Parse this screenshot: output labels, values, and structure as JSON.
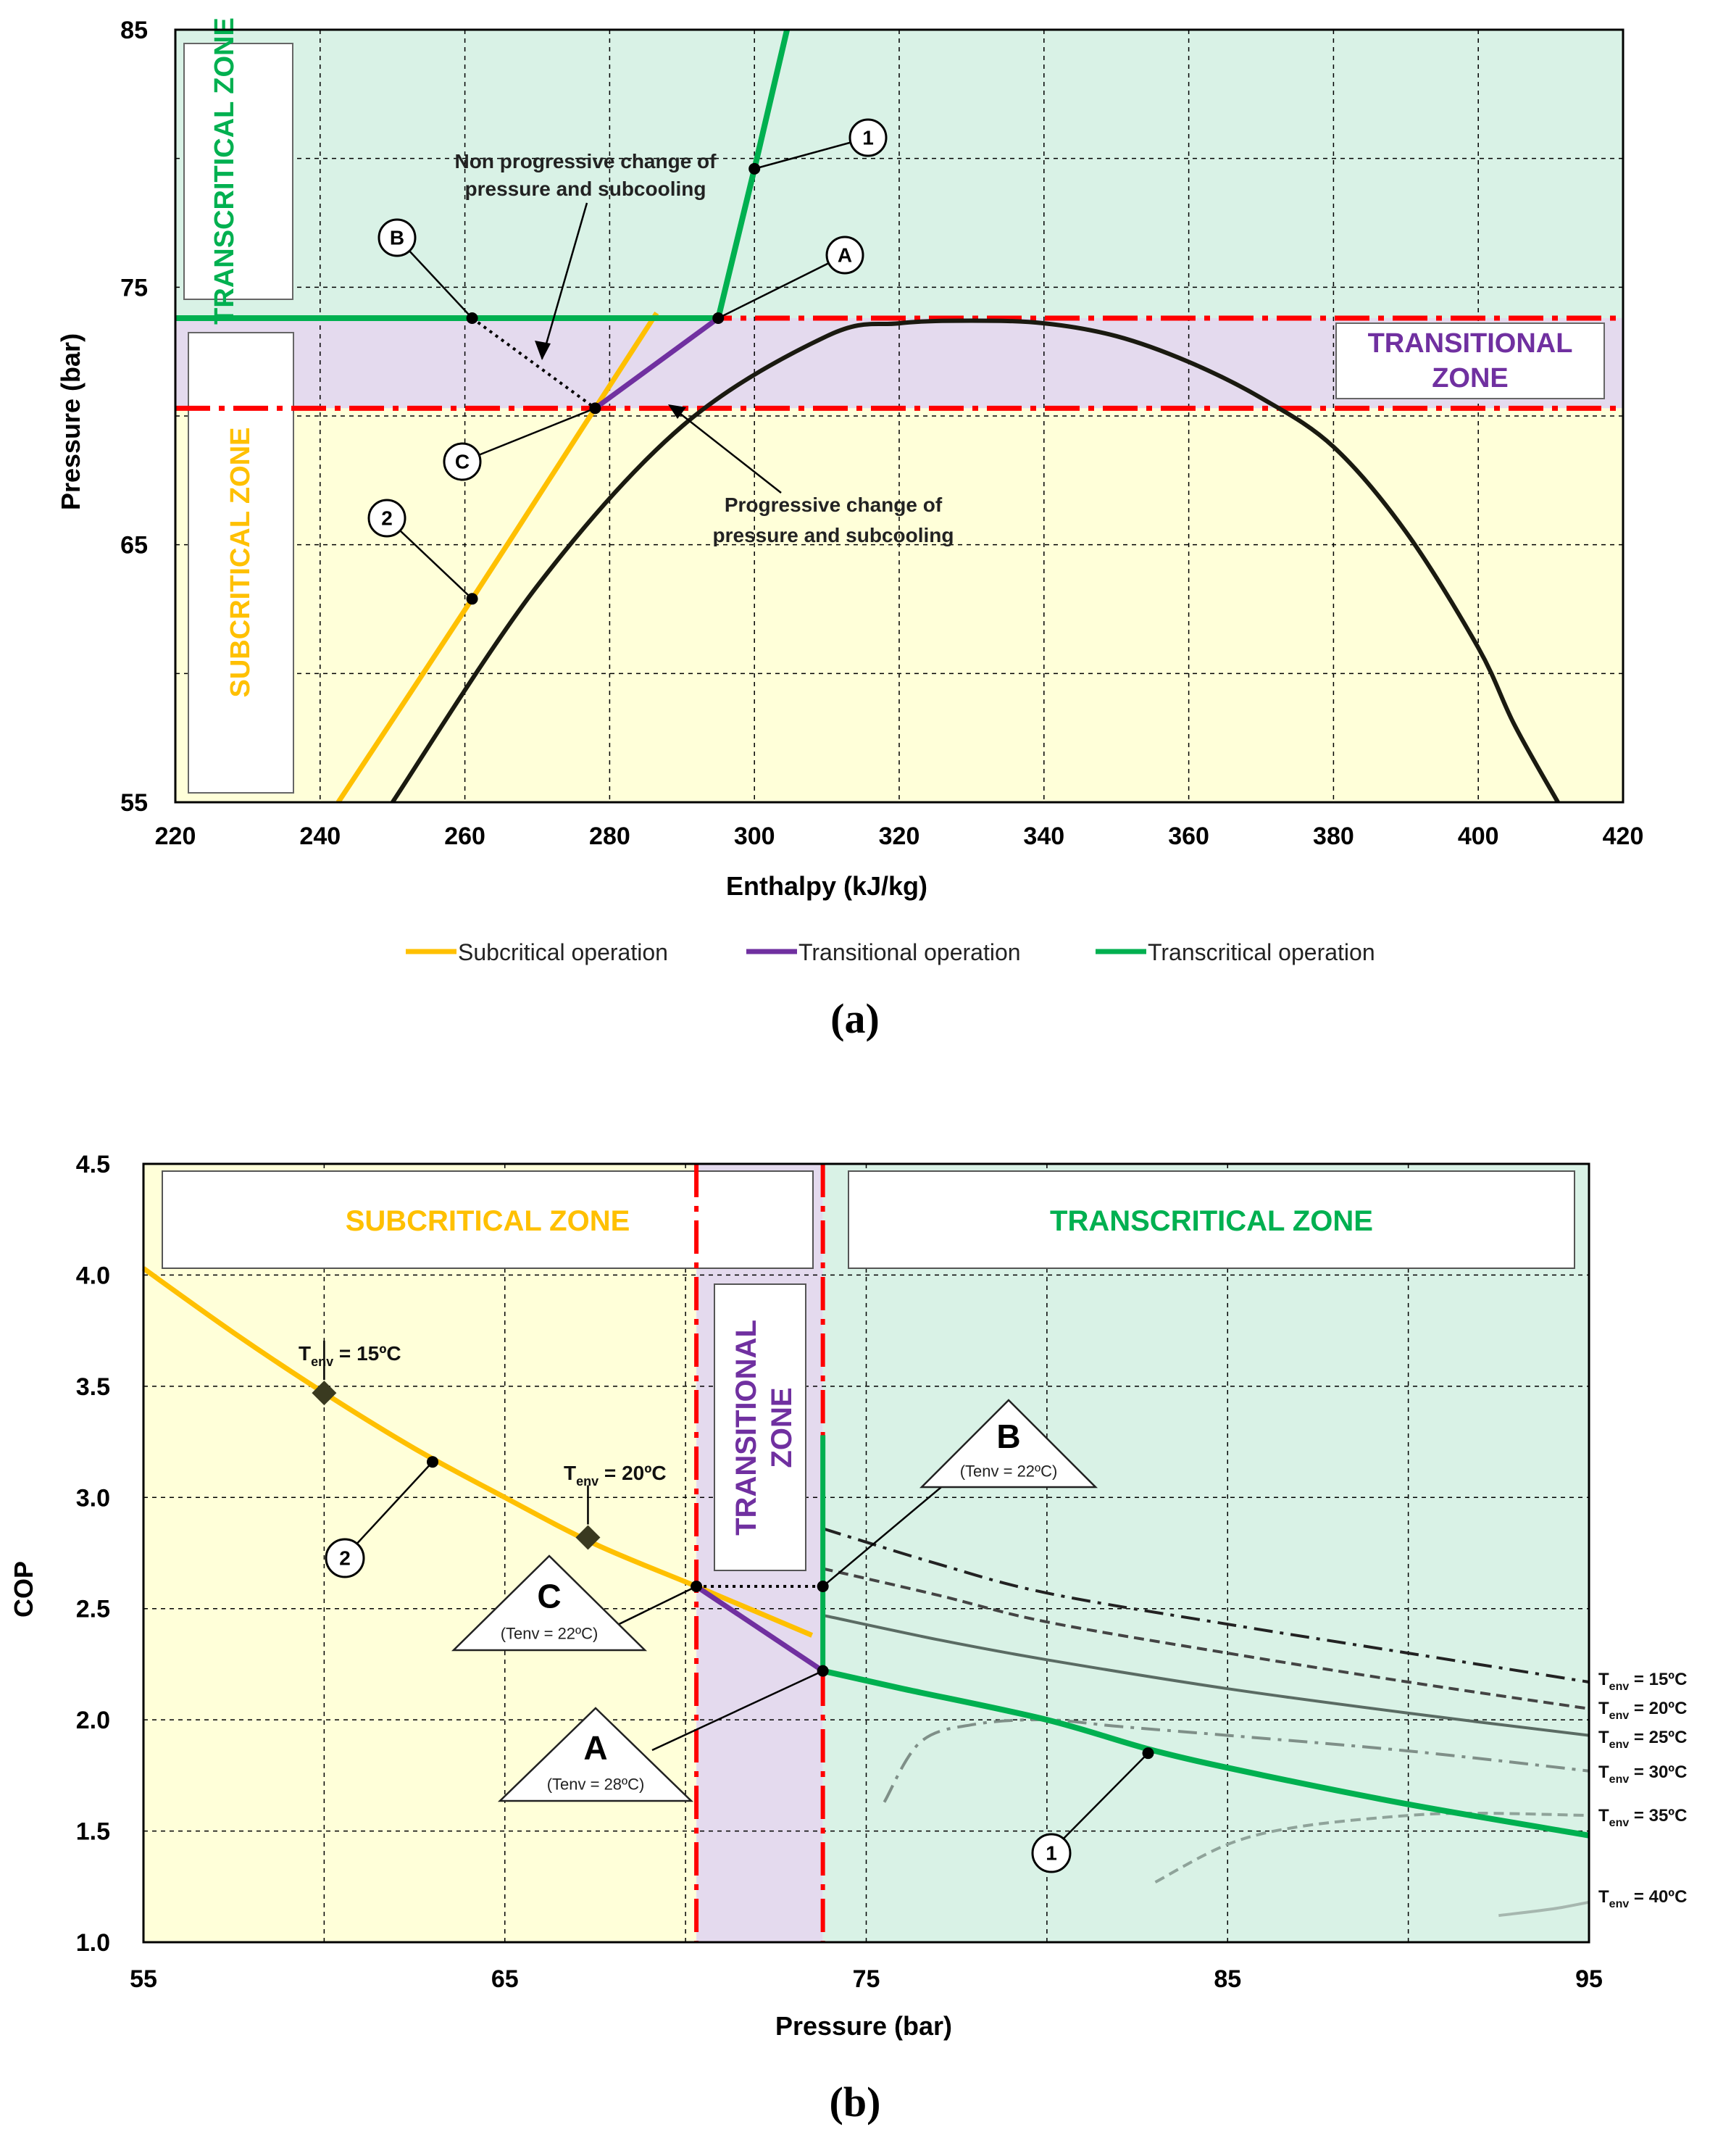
{
  "chart_data": [
    {
      "id": "a",
      "type": "line",
      "caption": "(a)",
      "xlabel": "Enthalpy (kJ/kg)",
      "ylabel": "Pressure (bar)",
      "xlim": [
        220,
        420
      ],
      "ylim": [
        55,
        85
      ],
      "xticks": [
        "220",
        "240",
        "260",
        "280",
        "300",
        "320",
        "340",
        "360",
        "380",
        "400",
        "420"
      ],
      "yticks": [
        "55",
        "65",
        "75",
        "85"
      ],
      "zones": {
        "transcritical_label": "TRANSCRITICAL ZONE",
        "subcritical_label": "SUBCRITICAL ZONE",
        "transitional_label": "TRANSITIONAL ZONE",
        "transitional_bounds_bar": [
          70.3,
          73.8
        ]
      },
      "colors": {
        "subcritical": "#FFC000",
        "transitional": "#7030A0",
        "transcritical": "#00B050",
        "boundary": "#FF0000",
        "dome": "#1a1a10",
        "transcritical_bg": "#D9F2E6",
        "transitional_bg": "#E4DAEE",
        "subcritical_bg": "#FFFFD9"
      },
      "series": [
        {
          "name": "Subcritical operation",
          "x": [
            242.5,
            261,
            278,
            286.5
          ],
          "y": [
            55,
            62.9,
            70.3,
            74.0
          ]
        },
        {
          "name": "Transitional operation",
          "x": [
            278,
            295
          ],
          "y": [
            70.3,
            73.8
          ]
        },
        {
          "name": "Transcritical operation",
          "x": [
            220,
            295,
            300,
            304.5
          ],
          "y": [
            73.8,
            73.8,
            79.6,
            85
          ]
        },
        {
          "name": "Saturation dome",
          "x": [
            250,
            270,
            290,
            310,
            320,
            330,
            340,
            350,
            360,
            370,
            380,
            390,
            400,
            405,
            411
          ],
          "y": [
            55,
            63.4,
            69.6,
            73.1,
            73.6,
            73.7,
            73.6,
            73.1,
            72.1,
            70.7,
            68.8,
            65.5,
            61.0,
            58.0,
            55
          ]
        },
        {
          "name": "Non progressive path",
          "x": [
            261,
            278
          ],
          "y": [
            73.8,
            70.3
          ]
        }
      ],
      "points": [
        {
          "label": "1",
          "x": 300,
          "y": 79.6
        },
        {
          "label": "A",
          "x": 295,
          "y": 73.8
        },
        {
          "label": "B",
          "x": 261,
          "y": 73.8
        },
        {
          "label": "C",
          "x": 278,
          "y": 70.3
        },
        {
          "label": "2",
          "x": 261,
          "y": 62.9
        }
      ],
      "annotations": {
        "non_progressive_line1": "Non progressive change of",
        "non_progressive_line2": "pressure and subcooling",
        "progressive_line1": "Progressive change of",
        "progressive_line2": "pressure and subcooling"
      },
      "legend": [
        "Subcritical operation",
        "Transitional operation",
        "Transcritical operation"
      ]
    },
    {
      "id": "b",
      "type": "line",
      "caption": "(b)",
      "xlabel": "Pressure (bar)",
      "ylabel": "COP",
      "xlim": [
        55,
        95
      ],
      "ylim": [
        1.0,
        4.5
      ],
      "xticks": [
        "55",
        "65",
        "75",
        "85",
        "95"
      ],
      "yticks": [
        "1.0",
        "1.5",
        "2.0",
        "2.5",
        "3.0",
        "3.5",
        "4.0",
        "4.5"
      ],
      "zones": {
        "subcritical_label": "SUBCRITICAL ZONE",
        "transitional_label": "TRANSITIONAL ZONE",
        "transcritical_label": "TRANSCRITICAL ZONE",
        "transitional_bounds_bar": [
          70.3,
          73.8
        ]
      },
      "series": [
        {
          "name": "Subcritical operation",
          "x": [
            55,
            57.5,
            60,
            62.5,
            65,
            67.5,
            70.3,
            73.5
          ],
          "y": [
            4.03,
            3.74,
            3.47,
            3.22,
            3.0,
            2.79,
            2.6,
            2.38
          ]
        },
        {
          "name": "Transitional operation",
          "x": [
            70.3,
            73.8
          ],
          "y": [
            2.6,
            2.22
          ]
        },
        {
          "name": "Transcritical operation (Tenv = 28ºC)",
          "x": [
            73.8,
            73.8,
            73.8,
            76,
            80,
            83,
            86,
            90,
            95
          ],
          "y": [
            3.28,
            2.6,
            2.22,
            2.14,
            2.0,
            1.86,
            1.75,
            1.62,
            1.48
          ]
        },
        {
          "name": "Tenv = 15ºC",
          "x": [
            73.8,
            77,
            80,
            85,
            90,
            95
          ],
          "y": [
            2.86,
            2.7,
            2.57,
            2.43,
            2.3,
            2.17
          ]
        },
        {
          "name": "Tenv = 20ºC",
          "x": [
            73.8,
            77,
            80,
            85,
            90,
            95
          ],
          "y": [
            2.68,
            2.56,
            2.44,
            2.3,
            2.17,
            2.05
          ]
        },
        {
          "name": "Tenv = 25ºC",
          "x": [
            73.8,
            77,
            80,
            85,
            90,
            95
          ],
          "y": [
            2.47,
            2.36,
            2.27,
            2.14,
            2.03,
            1.93
          ]
        },
        {
          "name": "Tenv = 30ºC",
          "x": [
            75.5,
            76.5,
            78,
            80,
            82,
            85,
            90,
            95
          ],
          "y": [
            1.63,
            1.9,
            1.98,
            2.0,
            1.97,
            1.93,
            1.86,
            1.77
          ]
        },
        {
          "name": "Tenv = 35ºC",
          "x": [
            83,
            85,
            87,
            90,
            92,
            95
          ],
          "y": [
            1.27,
            1.44,
            1.52,
            1.57,
            1.58,
            1.57
          ]
        },
        {
          "name": "Tenv = 40ºC",
          "x": [
            92.5,
            94,
            95
          ],
          "y": [
            1.12,
            1.15,
            1.18
          ]
        },
        {
          "name": "Non progressive path",
          "x": [
            70.3,
            73.8
          ],
          "y": [
            2.6,
            2.6
          ]
        }
      ],
      "points": [
        {
          "label": "C",
          "x": 70.3,
          "y": 2.6
        },
        {
          "label": "B",
          "x": 73.8,
          "y": 2.6
        },
        {
          "label": "A",
          "x": 73.8,
          "y": 2.22
        },
        {
          "label": "2",
          "x": 63,
          "y": 3.16
        },
        {
          "label": "1",
          "x": 82.8,
          "y": 1.85
        }
      ],
      "markers": [
        {
          "label": "Tenv = 15ºC",
          "x": 60,
          "y": 3.47
        },
        {
          "label": "Tenv = 20ºC",
          "x": 67.3,
          "y": 2.82
        }
      ],
      "labels": {
        "B_sub": "(Tenv = 22ºC)",
        "C_sub": "(Tenv = 22ºC)",
        "A_sub": "(Tenv = 28ºC)",
        "tenv_right": [
          "15ºC",
          "20ºC",
          "25ºC",
          "30ºC",
          "35ºC",
          "40ºC"
        ],
        "tenv_marker_15": "15ºC",
        "tenv_marker_20": "20ºC"
      }
    }
  ]
}
